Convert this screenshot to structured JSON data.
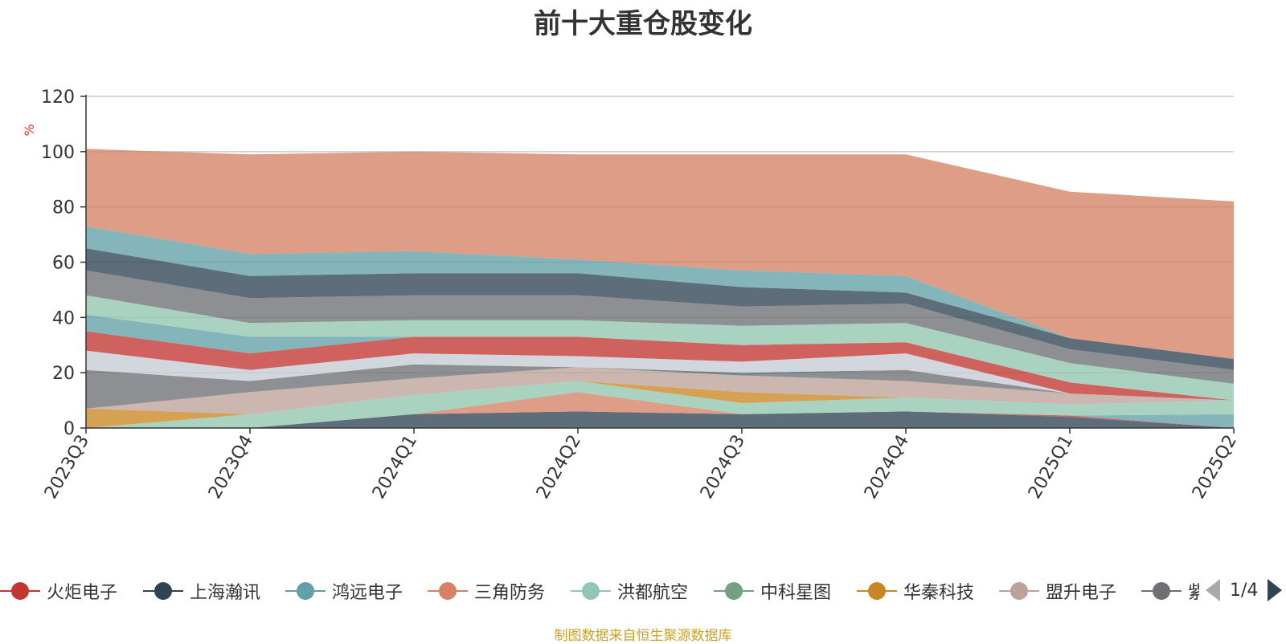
{
  "chart_data": {
    "type": "area",
    "title": "前十大重仓股变化",
    "ylabel": "%",
    "ylim": [
      0,
      120
    ],
    "y_ticks": [
      0,
      20,
      40,
      60,
      80,
      100,
      120
    ],
    "stacked": true,
    "categories": [
      "2023Q3",
      "2023Q4",
      "2024Q1",
      "2024Q2",
      "2024Q3",
      "2024Q4",
      "2025Q1",
      "2025Q2"
    ],
    "series": [
      {
        "name": "",
        "color": "#2f4554",
        "values": [
          0,
          0,
          5,
          6,
          5,
          6,
          4,
          0
        ]
      },
      {
        "name": "",
        "color": "#c23531",
        "values": [
          0,
          0,
          0,
          0,
          0,
          0,
          0.5,
          0
        ]
      },
      {
        "name": "",
        "color": "#61a0a8",
        "values": [
          0,
          0,
          0,
          0,
          0,
          0,
          0,
          5
        ]
      },
      {
        "name": "",
        "color": "#d48265",
        "values": [
          0,
          0,
          0,
          7,
          0,
          0,
          0,
          0
        ]
      },
      {
        "name": "",
        "color": "#91c7ae",
        "values": [
          0,
          5,
          7,
          4,
          4,
          5,
          4,
          5
        ]
      },
      {
        "name": "",
        "color": "#749f83",
        "values": [
          0,
          0,
          0,
          0,
          0,
          0,
          0,
          0
        ]
      },
      {
        "name": "",
        "color": "#ca8622",
        "values": [
          7,
          0,
          0,
          0,
          4,
          0,
          0,
          0
        ]
      },
      {
        "name": "",
        "color": "#bda29a",
        "values": [
          0,
          8,
          6,
          5,
          6,
          6,
          4,
          0
        ]
      },
      {
        "name": "",
        "color": "#6e7074",
        "values": [
          14,
          4,
          5,
          0,
          0,
          4,
          0,
          0
        ]
      },
      {
        "name": "",
        "color": "#546570",
        "values": [
          0,
          0,
          0,
          0,
          1,
          0,
          0,
          0
        ]
      },
      {
        "name": "",
        "color": "#c4ccd3",
        "values": [
          7,
          4,
          4,
          4,
          4,
          6,
          0,
          0
        ]
      },
      {
        "name": "",
        "color": "#c23531",
        "values": [
          7,
          6,
          6,
          7,
          6,
          4,
          4,
          0
        ]
      },
      {
        "name": "",
        "color": "#61a0a8",
        "values": [
          6,
          6,
          0,
          0,
          0,
          0,
          0,
          0
        ]
      },
      {
        "name": "",
        "color": "#91c7ae",
        "values": [
          7,
          5,
          6,
          6,
          7,
          7,
          7,
          6
        ]
      },
      {
        "name": "",
        "color": "#6e7074",
        "values": [
          9,
          9,
          9,
          9,
          7,
          7,
          5,
          5
        ]
      },
      {
        "name": "",
        "color": "#2f4554",
        "values": [
          8,
          8,
          8,
          8,
          7,
          4,
          4,
          4
        ]
      },
      {
        "name": "",
        "color": "#61a0a8",
        "values": [
          8,
          8,
          8,
          5,
          6,
          6,
          0,
          0
        ]
      },
      {
        "name": "",
        "color": "#d48265",
        "values": [
          28,
          36,
          36,
          38,
          42,
          44,
          53,
          57
        ]
      }
    ],
    "legend": {
      "position": "bottom",
      "items": [
        {
          "name": "火炬电子",
          "color": "#c23531"
        },
        {
          "name": "上海瀚讯",
          "color": "#2f4554"
        },
        {
          "name": "鸿远电子",
          "color": "#61a0a8"
        },
        {
          "name": "三角防务",
          "color": "#d48265"
        },
        {
          "name": "洪都航空",
          "color": "#91c7ae"
        },
        {
          "name": "中科星图",
          "color": "#749f83"
        },
        {
          "name": "华秦科技",
          "color": "#ca8622"
        },
        {
          "name": "盟升电子",
          "color": "#bda29a"
        },
        {
          "name": "紫",
          "color": "#6e7074"
        }
      ]
    },
    "grid": true
  },
  "legend_pager": {
    "text": "1/4"
  },
  "source_note": "制图数据来自恒生聚源数据库"
}
